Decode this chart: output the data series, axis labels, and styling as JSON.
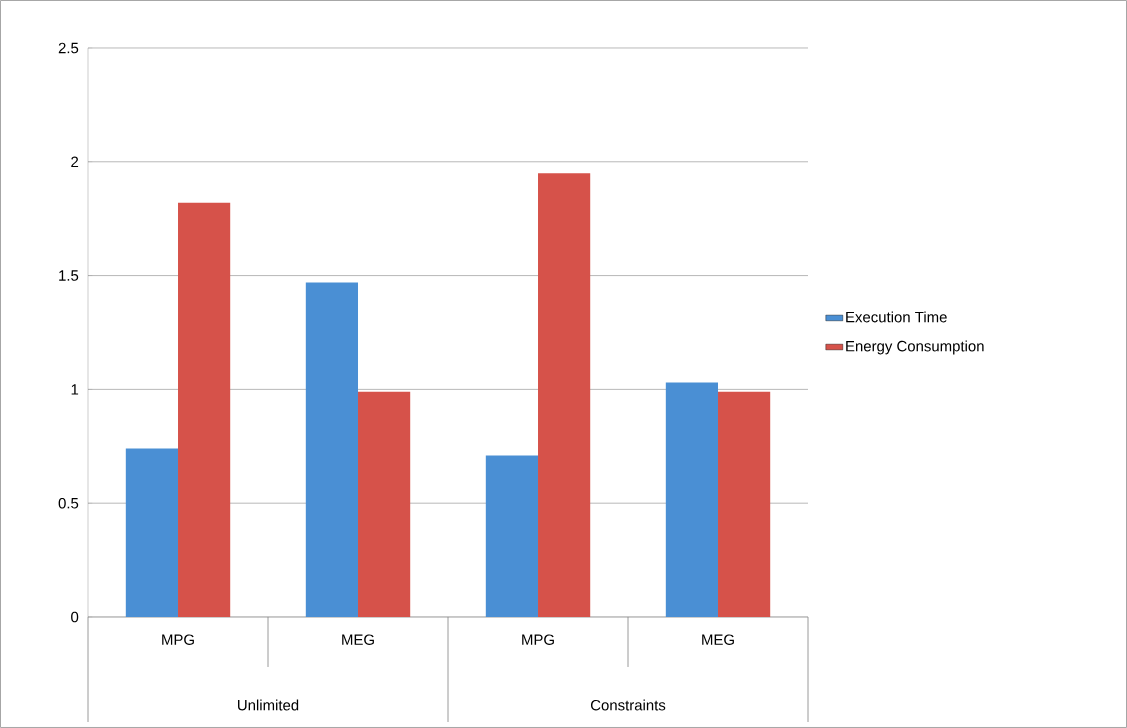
{
  "chart_data": {
    "type": "bar",
    "categories": [
      "MPG",
      "MEG",
      "MPG",
      "MEG"
    ],
    "series": [
      {
        "name": "Execution Time",
        "color": "#4a8fd4",
        "values": [
          0.74,
          1.47,
          0.71,
          1.03
        ]
      },
      {
        "name": "Energy Consumption",
        "color": "#d6524a",
        "values": [
          1.82,
          0.99,
          1.95,
          0.99
        ]
      }
    ],
    "annotations": [
      "Unlimited",
      "Constraints"
    ],
    "ylim": [
      0,
      2.5
    ],
    "yticks": [
      0,
      0.5,
      1,
      1.5,
      2,
      2.5
    ],
    "grid": "y",
    "legend": "right"
  }
}
